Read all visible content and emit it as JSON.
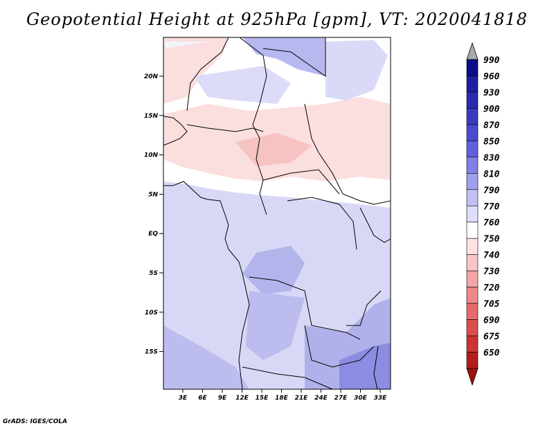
{
  "title": "Geopotential Height at 925hPa [gpm], VT: 2020041818",
  "footer": "GrADS: IGES/COLA",
  "map": {
    "lat_ticks": [
      "20N",
      "15N",
      "10N",
      "5N",
      "EQ",
      "5S",
      "10S",
      "15S"
    ],
    "lon_ticks": [
      "3E",
      "6E",
      "9E",
      "12E",
      "15E",
      "18E",
      "21E",
      "24E",
      "27E",
      "30E",
      "33E"
    ]
  },
  "colorbar": {
    "levels": [
      {
        "label": "990",
        "color": "#0c0c8c"
      },
      {
        "label": "960",
        "color": "#1e1ea0"
      },
      {
        "label": "930",
        "color": "#2a2ab0"
      },
      {
        "label": "900",
        "color": "#3a3ac0"
      },
      {
        "label": "870",
        "color": "#4a4ad0"
      },
      {
        "label": "850",
        "color": "#6060dc"
      },
      {
        "label": "830",
        "color": "#8080e6"
      },
      {
        "label": "810",
        "color": "#a0a0ee"
      },
      {
        "label": "790",
        "color": "#c0c0f4"
      },
      {
        "label": "770",
        "color": "#dedefa"
      },
      {
        "label": "760",
        "color": "#ffffff"
      },
      {
        "label": "750",
        "color": "#fde2e2"
      },
      {
        "label": "740",
        "color": "#f8c4c4"
      },
      {
        "label": "730",
        "color": "#f4a6a6"
      },
      {
        "label": "720",
        "color": "#ee8888"
      },
      {
        "label": "705",
        "color": "#e66a6a"
      },
      {
        "label": "690",
        "color": "#dc4e4e"
      },
      {
        "label": "675",
        "color": "#cc3434"
      },
      {
        "label": "650",
        "color": "#b41c1c"
      }
    ],
    "top_arrow_color": "#aaaaaa",
    "bottom_arrow_color": "#a01010"
  }
}
